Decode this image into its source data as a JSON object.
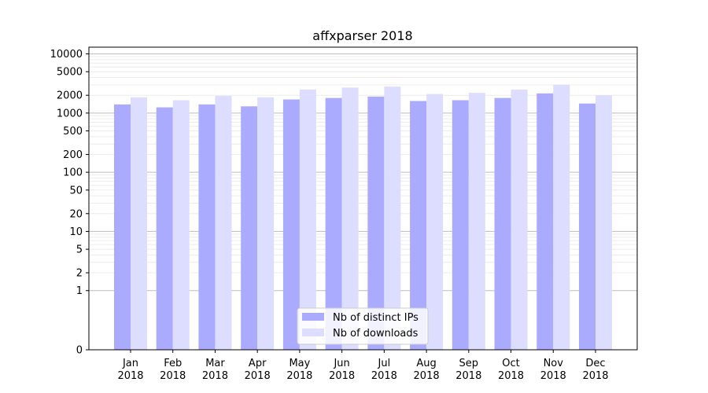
{
  "chart_data": {
    "type": "bar",
    "title": "affxparser 2018",
    "xlabel": "",
    "ylabel": "",
    "yscale": "symlog",
    "ylim": [
      0,
      13000
    ],
    "yticks": [
      0,
      1,
      2,
      5,
      10,
      20,
      50,
      100,
      200,
      500,
      1000,
      2000,
      5000,
      10000
    ],
    "categories": [
      "Jan\n2018",
      "Feb\n2018",
      "Mar\n2018",
      "Apr\n2018",
      "May\n2018",
      "Jun\n2018",
      "Jul\n2018",
      "Aug\n2018",
      "Sep\n2018",
      "Oct\n2018",
      "Nov\n2018",
      "Dec\n2018"
    ],
    "series": [
      {
        "name": "Nb of distinct IPs",
        "color": "#aaaaff",
        "values": [
          1400,
          1250,
          1400,
          1300,
          1700,
          1800,
          1900,
          1600,
          1650,
          1800,
          2150,
          1450
        ]
      },
      {
        "name": "Nb of downloads",
        "color": "#ddddff",
        "values": [
          1850,
          1650,
          1950,
          1850,
          2500,
          2700,
          2800,
          2100,
          2200,
          2500,
          3000,
          2000
        ]
      }
    ],
    "grid": "y-major-and-minor",
    "legend_position": "bottom-center"
  }
}
